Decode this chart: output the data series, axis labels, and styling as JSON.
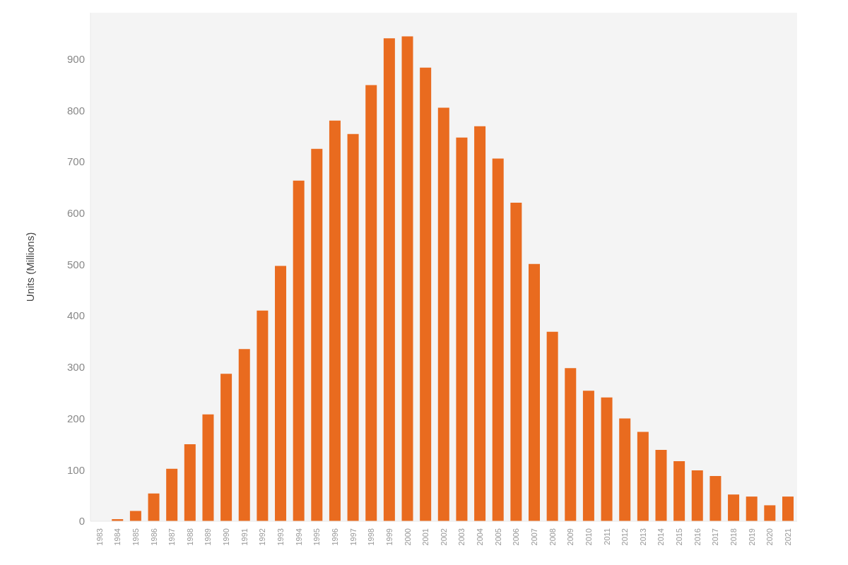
{
  "chart_data": {
    "type": "bar",
    "ylabel": "Units (Millions)",
    "categories": [
      "1983",
      "1984",
      "1985",
      "1986",
      "1987",
      "1988",
      "1989",
      "1990",
      "1991",
      "1992",
      "1993",
      "1994",
      "1995",
      "1996",
      "1997",
      "1998",
      "1999",
      "2000",
      "2001",
      "2002",
      "2003",
      "2004",
      "2005",
      "2006",
      "2007",
      "2008",
      "2009",
      "2010",
      "2011",
      "2012",
      "2013",
      "2014",
      "2015",
      "2016",
      "2017",
      "2018",
      "2019",
      "2020",
      "2021"
    ],
    "values": [
      0,
      4,
      20,
      54,
      102,
      150,
      208,
      287,
      335,
      410,
      497,
      663,
      725,
      780,
      754,
      849,
      940,
      944,
      883,
      805,
      747,
      769,
      706,
      620,
      501,
      369,
      298,
      254,
      241,
      200,
      174,
      139,
      117,
      99,
      88,
      52,
      48,
      31,
      48
    ],
    "color": "#e96b1f",
    "ylim": [
      0,
      990
    ],
    "yticks": [
      0,
      100,
      200,
      300,
      400,
      500,
      600,
      700,
      800,
      900
    ],
    "grid": false,
    "legend": false
  }
}
